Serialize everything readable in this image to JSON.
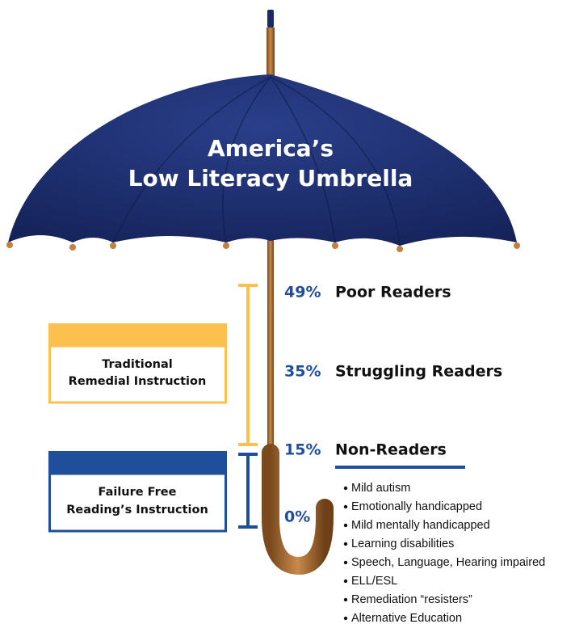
{
  "title": {
    "line1": "America’s",
    "line2": "Low Literacy Umbrella"
  },
  "levels": [
    {
      "percent": "49%",
      "label": "Poor Readers"
    },
    {
      "percent": "35%",
      "label": "Struggling Readers"
    },
    {
      "percent": "15%",
      "label": "Non-Readers"
    },
    {
      "percent": "0%",
      "label": null
    }
  ],
  "boxes": [
    {
      "line1": "Traditional",
      "line2": "Remedial Instruction"
    },
    {
      "line1": "Failure Free",
      "line2": "Reading’s Instruction"
    }
  ],
  "conditions": [
    "Mild autism",
    "Emotionally handicapped",
    "Mild mentally handicapped",
    "Learning disabilities",
    "Speech, Language, Hearing impaired",
    "ELL/ESL",
    "Remediation “resisters”",
    "Alternative Education"
  ]
}
